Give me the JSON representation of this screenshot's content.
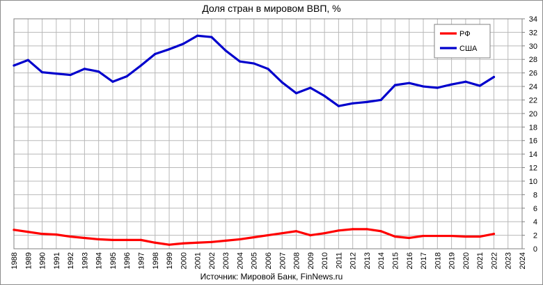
{
  "chart_data": {
    "type": "line",
    "title": "Доля стран в мировом ВВП, %",
    "source": "Источник: Мировой Банк, FinNews.ru",
    "xlabel": "",
    "ylabel": "",
    "ylim": [
      0,
      34
    ],
    "y_ticks": [
      0,
      2,
      4,
      6,
      8,
      10,
      12,
      14,
      16,
      18,
      20,
      22,
      24,
      26,
      28,
      30,
      32,
      34
    ],
    "x_ticks": [
      1988,
      1989,
      1990,
      1991,
      1992,
      1993,
      1994,
      1995,
      1996,
      1997,
      1998,
      1999,
      2000,
      2001,
      2002,
      2003,
      2004,
      2005,
      2006,
      2007,
      2008,
      2009,
      2010,
      2011,
      2012,
      2013,
      2014,
      2015,
      2016,
      2017,
      2018,
      2019,
      2020,
      2021,
      2022,
      2023,
      2024
    ],
    "grid": true,
    "legend_position": "top-right",
    "series": [
      {
        "name": "РФ",
        "color": "#ff0000",
        "x": [
          1988,
          1989,
          1990,
          1991,
          1992,
          1993,
          1994,
          1995,
          1996,
          1997,
          1998,
          1999,
          2000,
          2001,
          2002,
          2003,
          2004,
          2005,
          2006,
          2007,
          2008,
          2009,
          2010,
          2011,
          2012,
          2013,
          2014,
          2015,
          2016,
          2017,
          2018,
          2019,
          2020,
          2021,
          2022
        ],
        "values": [
          2.8,
          2.5,
          2.2,
          2.1,
          1.8,
          1.6,
          1.4,
          1.3,
          1.3,
          1.3,
          0.9,
          0.6,
          0.8,
          0.9,
          1.0,
          1.2,
          1.4,
          1.7,
          2.0,
          2.3,
          2.6,
          2.0,
          2.3,
          2.7,
          2.9,
          2.9,
          2.6,
          1.8,
          1.6,
          1.9,
          1.9,
          1.9,
          1.8,
          1.8,
          2.2
        ]
      },
      {
        "name": "США",
        "color": "#0000cc",
        "x": [
          1988,
          1989,
          1990,
          1991,
          1992,
          1993,
          1994,
          1995,
          1996,
          1997,
          1998,
          1999,
          2000,
          2001,
          2002,
          2003,
          2004,
          2005,
          2006,
          2007,
          2008,
          2009,
          2010,
          2011,
          2012,
          2013,
          2014,
          2015,
          2016,
          2017,
          2018,
          2019,
          2020,
          2021,
          2022
        ],
        "values": [
          27.1,
          27.9,
          26.1,
          25.9,
          25.7,
          26.6,
          26.2,
          24.7,
          25.5,
          27.1,
          28.8,
          29.5,
          30.3,
          31.5,
          31.3,
          29.3,
          27.7,
          27.4,
          26.6,
          24.6,
          23.0,
          23.8,
          22.6,
          21.1,
          21.5,
          21.7,
          22.0,
          24.2,
          24.5,
          24.0,
          23.8,
          24.3,
          24.7,
          24.1,
          25.4
        ]
      }
    ]
  }
}
